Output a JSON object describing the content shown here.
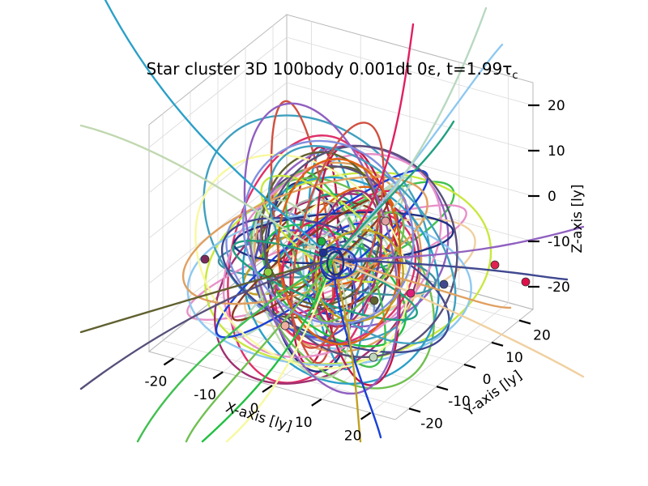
{
  "chart_data": {
    "type": "line",
    "title": "Star cluster 3D 100body 0.001dt 0ε, t=1.99τ",
    "title_subscript": "c",
    "xlabel": "X-axis [ly]",
    "ylabel": "Y-axis [ly]",
    "zlabel": "Z-axis [ly]",
    "xticks": [
      "-20",
      "-10",
      "0",
      "10",
      "20"
    ],
    "yticks": [
      "-20",
      "-10",
      "0",
      "10",
      "20"
    ],
    "zticks": [
      "20",
      "10",
      "0",
      "-10",
      "-20"
    ],
    "xlim": [
      -25,
      25
    ],
    "ylim": [
      -25,
      25
    ],
    "zlim": [
      -25,
      25
    ],
    "grid": true,
    "series_count": 100,
    "series": [
      {
        "color": "#3f8fa0"
      },
      {
        "color": "#8ec8f0"
      },
      {
        "color": "#e0306a"
      },
      {
        "color": "#2aa0c8"
      },
      {
        "color": "#40c050"
      },
      {
        "color": "#e890c8"
      },
      {
        "color": "#b8d8c0"
      },
      {
        "color": "#203080"
      },
      {
        "color": "#c0d8b0"
      },
      {
        "color": "#e02060"
      },
      {
        "color": "#c01848"
      },
      {
        "color": "#1840d8"
      },
      {
        "color": "#8a3a20"
      },
      {
        "color": "#606030"
      },
      {
        "color": "#404890"
      },
      {
        "color": "#c8e840"
      },
      {
        "color": "#f8f8a0"
      },
      {
        "color": "#a03070"
      },
      {
        "color": "#58507a"
      },
      {
        "color": "#e0a060"
      },
      {
        "color": "#40a0c0"
      },
      {
        "color": "#70c050"
      },
      {
        "color": "#d05040"
      },
      {
        "color": "#9060c0"
      },
      {
        "color": "#20a080"
      },
      {
        "color": "#e06010"
      },
      {
        "color": "#c0a020"
      },
      {
        "color": "#8090e0"
      },
      {
        "color": "#f0d0a0"
      },
      {
        "color": "#5050d0"
      },
      {
        "color": "#b0b0b0"
      },
      {
        "color": "#20c040"
      }
    ]
  }
}
